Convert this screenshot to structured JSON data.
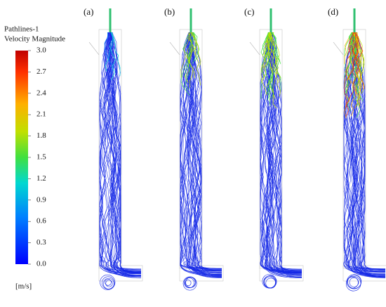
{
  "legend": {
    "title": [
      "Pathlines-1",
      "Velocity Magnitude"
    ],
    "ticks": [
      {
        "value": 0,
        "label": "0.0"
      },
      {
        "value": 0.3,
        "label": "0.3"
      },
      {
        "value": 0.6,
        "label": "0.6"
      },
      {
        "value": 0.9,
        "label": "0.9"
      },
      {
        "value": 1.2,
        "label": "1.2"
      },
      {
        "value": 1.5,
        "label": "1.5"
      },
      {
        "value": 1.8,
        "label": "1.8"
      },
      {
        "value": 2.1,
        "label": "2.1"
      },
      {
        "value": 2.4,
        "label": "2.4"
      },
      {
        "value": 2.7,
        "label": "2.7"
      },
      {
        "value": 3,
        "label": "3.0"
      }
    ],
    "unit": "[m/s]"
  },
  "panels": [
    {
      "label": "(a)"
    },
    {
      "label": "(b)"
    },
    {
      "label": "(c)"
    },
    {
      "label": "(d)"
    }
  ]
}
